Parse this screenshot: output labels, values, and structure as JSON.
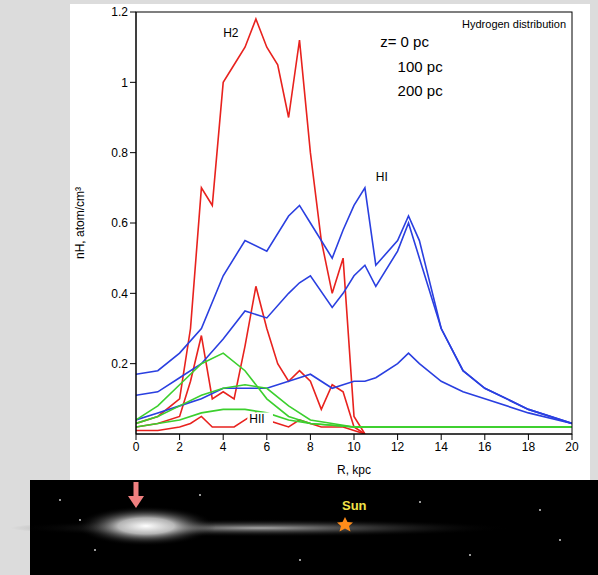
{
  "chart_data": {
    "type": "line",
    "title": "Hydrogen distribution",
    "x_label": "R, kpc",
    "y_label": "nH, atom/cm³",
    "xlim": [
      0,
      20
    ],
    "xticks": [
      0,
      2,
      4,
      6,
      8,
      10,
      12,
      14,
      16,
      18,
      20
    ],
    "ylim": [
      0,
      1.2
    ],
    "yticks": [
      0.2,
      0.4,
      0.6,
      0.8,
      1,
      1.2
    ],
    "grid": false,
    "series": [
      {
        "name": "H2",
        "color": "#e8221e",
        "x": [
          0,
          1,
          2,
          2.5,
          3,
          3.5,
          4,
          4.5,
          5,
          5.5,
          6,
          6.5,
          7,
          7.5,
          8,
          8.5,
          9,
          9.5,
          10,
          10.5
        ],
        "values": [
          0.03,
          0.05,
          0.1,
          0.3,
          0.7,
          0.65,
          1.0,
          1.05,
          1.1,
          1.18,
          1.1,
          1.05,
          0.9,
          1.12,
          0.8,
          0.55,
          0.4,
          0.5,
          0.05,
          0
        ]
      },
      {
        "name": "H2",
        "color": "#e8221e",
        "x": [
          0,
          1,
          2,
          2.5,
          3,
          3.5,
          4,
          4.5,
          5,
          5.5,
          6,
          6.5,
          7,
          7.5,
          8,
          8.5,
          9,
          9.5,
          10,
          10.5
        ],
        "values": [
          0.02,
          0.03,
          0.05,
          0.15,
          0.28,
          0.1,
          0.12,
          0.1,
          0.25,
          0.42,
          0.3,
          0.2,
          0.15,
          0.18,
          0.15,
          0.07,
          0.14,
          0.12,
          0.02,
          0
        ]
      },
      {
        "name": "H2",
        "color": "#e8221e",
        "x": [
          0,
          1,
          2,
          2.5,
          3,
          3.5,
          4,
          4.5,
          5,
          5.5,
          6,
          6.5,
          7,
          7.5,
          8,
          8.5,
          9,
          9.5,
          10,
          10.5
        ],
        "values": [
          0.01,
          0.01,
          0.02,
          0.03,
          0.05,
          0.02,
          0.02,
          0.02,
          0.04,
          0.06,
          0.04,
          0.03,
          0.02,
          0.04,
          0.03,
          0.02,
          0.02,
          0.02,
          0.01,
          0
        ]
      },
      {
        "name": "HI",
        "color": "#2a3fe0",
        "x": [
          0,
          1,
          2,
          3,
          4,
          5,
          6,
          7,
          7.5,
          8,
          9,
          9.5,
          10,
          10.5,
          11,
          12,
          12.5,
          13,
          14,
          15,
          16,
          18,
          20
        ],
        "values": [
          0.17,
          0.18,
          0.23,
          0.3,
          0.45,
          0.55,
          0.52,
          0.62,
          0.65,
          0.6,
          0.5,
          0.58,
          0.65,
          0.7,
          0.48,
          0.55,
          0.62,
          0.55,
          0.3,
          0.18,
          0.13,
          0.07,
          0.03
        ]
      },
      {
        "name": "HI",
        "color": "#2a3fe0",
        "x": [
          0,
          1,
          2,
          3,
          4,
          5,
          6,
          7,
          7.5,
          8,
          9,
          9.5,
          10,
          10.5,
          11,
          12,
          12.5,
          13,
          14,
          15,
          16,
          18,
          20
        ],
        "values": [
          0.11,
          0.12,
          0.16,
          0.2,
          0.27,
          0.35,
          0.33,
          0.4,
          0.43,
          0.45,
          0.36,
          0.4,
          0.45,
          0.48,
          0.42,
          0.52,
          0.6,
          0.5,
          0.3,
          0.18,
          0.13,
          0.07,
          0.03
        ]
      },
      {
        "name": "HI",
        "color": "#2a3fe0",
        "x": [
          0,
          1,
          2,
          3,
          4,
          5,
          6,
          7,
          7.5,
          8,
          9,
          9.5,
          10,
          10.5,
          11,
          12,
          12.5,
          13,
          14,
          15,
          16,
          18,
          20
        ],
        "values": [
          0.04,
          0.06,
          0.08,
          0.1,
          0.13,
          0.13,
          0.13,
          0.15,
          0.16,
          0.17,
          0.13,
          0.14,
          0.15,
          0.15,
          0.16,
          0.2,
          0.23,
          0.2,
          0.15,
          0.12,
          0.1,
          0.06,
          0.03
        ]
      },
      {
        "name": "HII",
        "color": "#3ccf2e",
        "x": [
          0,
          1,
          2,
          3,
          4,
          5,
          6,
          7,
          8,
          10,
          12,
          15,
          20
        ],
        "values": [
          0.04,
          0.08,
          0.14,
          0.2,
          0.23,
          0.18,
          0.1,
          0.05,
          0.03,
          0.02,
          0.02,
          0.02,
          0.02
        ]
      },
      {
        "name": "HII",
        "color": "#3ccf2e",
        "x": [
          0,
          1,
          2,
          3,
          4,
          5,
          6,
          7,
          8,
          10,
          12,
          15,
          20
        ],
        "values": [
          0.03,
          0.05,
          0.08,
          0.11,
          0.13,
          0.14,
          0.13,
          0.08,
          0.04,
          0.02,
          0.02,
          0.02,
          0.02
        ]
      },
      {
        "name": "HII",
        "color": "#3ccf2e",
        "x": [
          0,
          1,
          2,
          3,
          4,
          5,
          6,
          7,
          8,
          10,
          12,
          15,
          20
        ],
        "values": [
          0.02,
          0.03,
          0.04,
          0.06,
          0.07,
          0.07,
          0.06,
          0.04,
          0.03,
          0.02,
          0.02,
          0.02,
          0.02
        ]
      }
    ],
    "annotations": [
      {
        "text": "H2",
        "x": 4.0,
        "y": 1.13
      },
      {
        "text": "HI",
        "x": 11.0,
        "y": 0.72
      },
      {
        "text": "HII",
        "x": 5.2,
        "y": 0.03
      },
      {
        "text": "z= 0 pc",
        "x": 11.2,
        "y": 1.1
      },
      {
        "text": "100 pc",
        "x": 12.0,
        "y": 1.03
      },
      {
        "text": "200 pc",
        "x": 12.0,
        "y": 0.96
      }
    ],
    "image_label": "Sun"
  }
}
